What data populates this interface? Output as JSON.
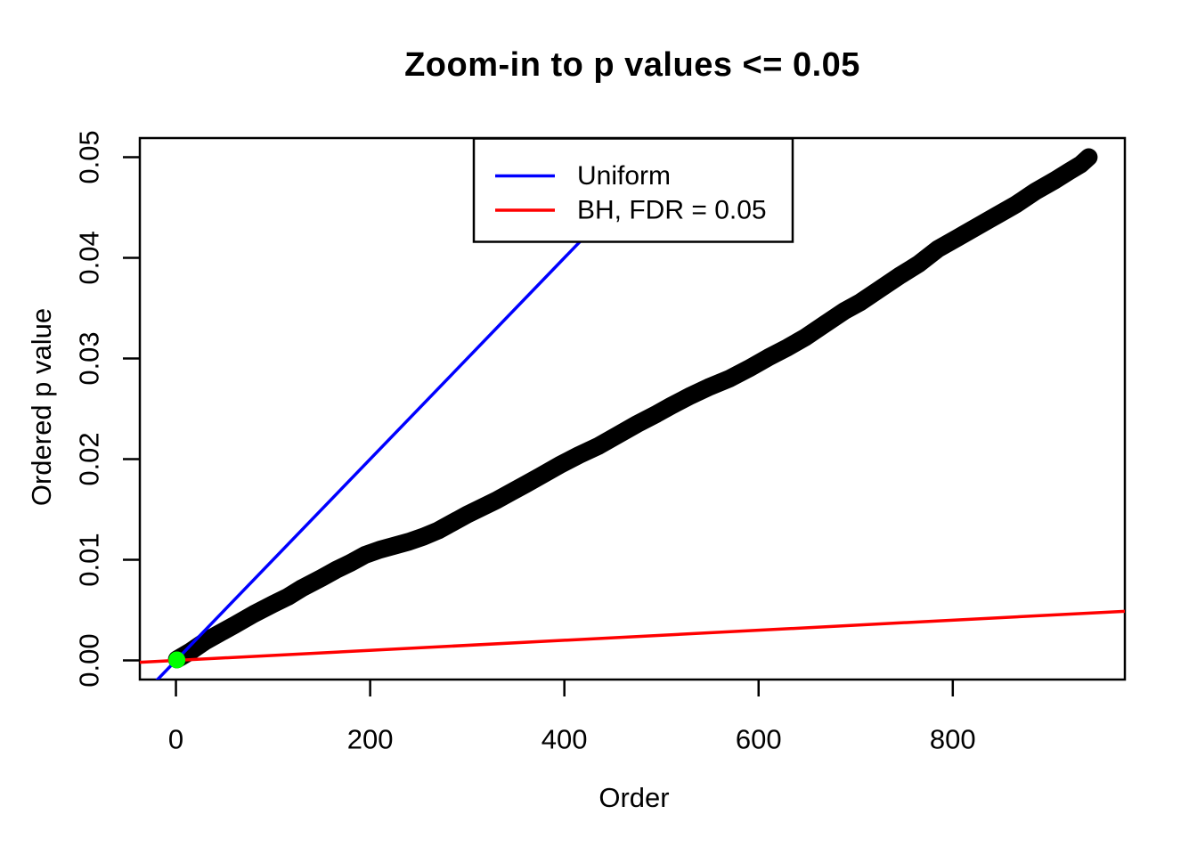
{
  "chart_data": {
    "type": "scatter",
    "title": "Zoom-in to p values <= 0.05",
    "xlabel": "Order",
    "ylabel": "Ordered p value",
    "xlim": [
      -37.2,
      977.2
    ],
    "ylim": [
      -0.0019,
      0.0519
    ],
    "x_ticks": [
      0,
      200,
      400,
      600,
      800
    ],
    "x_tick_labels": [
      "0",
      "200",
      "400",
      "600",
      "800"
    ],
    "y_ticks": [
      0.0,
      0.01,
      0.02,
      0.03,
      0.04,
      0.05
    ],
    "y_tick_labels": [
      "0.00",
      "0.01",
      "0.02",
      "0.03",
      "0.04",
      "0.05"
    ],
    "grid": false,
    "background": "#ffffff",
    "axis_color": "#000000",
    "legend": {
      "position": "top-inside",
      "entries": [
        {
          "label": "Uniform",
          "color": "#0000FF"
        },
        {
          "label": "BH, FDR = 0.05",
          "color": "#FF0000"
        }
      ]
    },
    "series": [
      {
        "name": "ordered-p-values",
        "type": "points",
        "color": "#000000",
        "marker_px": 20,
        "points": [
          [
            1,
            0.0001
          ],
          [
            15,
            0.0009
          ],
          [
            30,
            0.0019
          ],
          [
            45,
            0.0027
          ],
          [
            60,
            0.0035
          ],
          [
            80,
            0.0046
          ],
          [
            100,
            0.0056
          ],
          [
            115,
            0.0063
          ],
          [
            130,
            0.0072
          ],
          [
            150,
            0.0082
          ],
          [
            165,
            0.009
          ],
          [
            180,
            0.0097
          ],
          [
            195,
            0.0105
          ],
          [
            210,
            0.011
          ],
          [
            225,
            0.0114
          ],
          [
            240,
            0.0118
          ],
          [
            255,
            0.0123
          ],
          [
            270,
            0.0129
          ],
          [
            285,
            0.0137
          ],
          [
            300,
            0.0145
          ],
          [
            315,
            0.0152
          ],
          [
            330,
            0.0159
          ],
          [
            345,
            0.0167
          ],
          [
            360,
            0.0175
          ],
          [
            375,
            0.0183
          ],
          [
            395,
            0.0194
          ],
          [
            415,
            0.0204
          ],
          [
            435,
            0.0213
          ],
          [
            455,
            0.0224
          ],
          [
            475,
            0.0235
          ],
          [
            495,
            0.0245
          ],
          [
            510,
            0.0253
          ],
          [
            530,
            0.0263
          ],
          [
            550,
            0.0272
          ],
          [
            570,
            0.028
          ],
          [
            590,
            0.029
          ],
          [
            610,
            0.0301
          ],
          [
            630,
            0.0311
          ],
          [
            648,
            0.0321
          ],
          [
            668,
            0.0334
          ],
          [
            688,
            0.0347
          ],
          [
            705,
            0.0356
          ],
          [
            725,
            0.0369
          ],
          [
            745,
            0.0382
          ],
          [
            765,
            0.0394
          ],
          [
            785,
            0.0409
          ],
          [
            805,
            0.042
          ],
          [
            825,
            0.0431
          ],
          [
            845,
            0.0442
          ],
          [
            865,
            0.0453
          ],
          [
            885,
            0.0466
          ],
          [
            905,
            0.0477
          ],
          [
            920,
            0.0486
          ],
          [
            932,
            0.0493
          ],
          [
            940,
            0.05
          ]
        ]
      },
      {
        "name": "uniform-line",
        "type": "line",
        "color": "#0000FF",
        "intercept": 0,
        "slope": 0.0001
      },
      {
        "name": "bh-fdr-line",
        "type": "line",
        "color": "#FF0000",
        "intercept": 0,
        "slope": 5e-06
      },
      {
        "name": "first-pvalue-point",
        "type": "point",
        "color": "#00FF00",
        "point": [
          1,
          5e-05
        ],
        "radius_px": 9.5
      }
    ]
  }
}
